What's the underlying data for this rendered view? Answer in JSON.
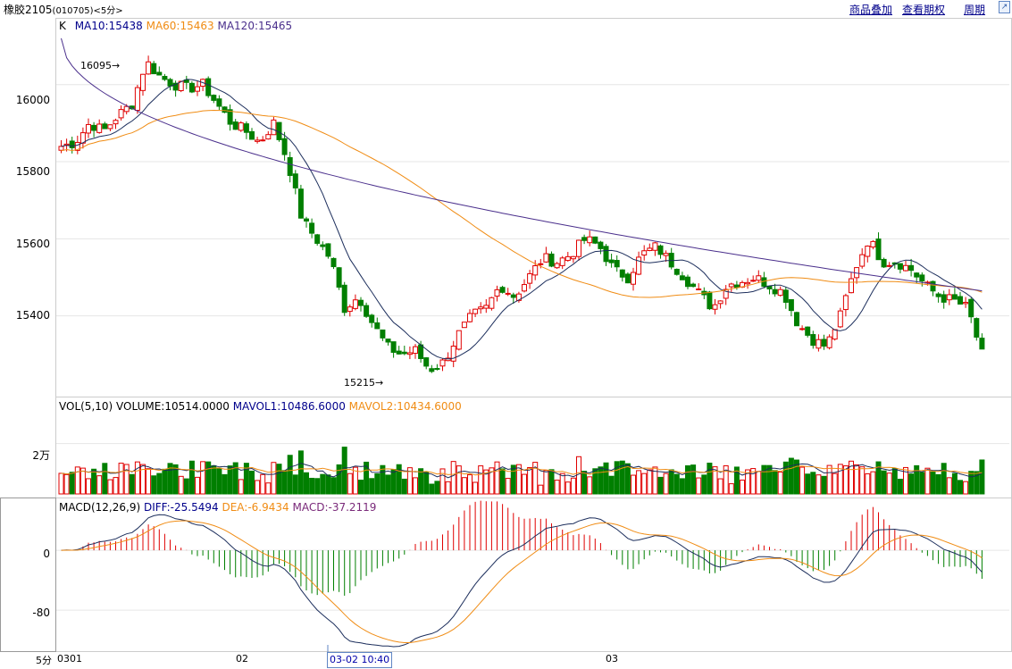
{
  "header": {
    "instrument": "橡胶2105",
    "code": "(010705)",
    "period": "<5分>",
    "menu_overlay": "商品叠加",
    "menu_options": "查看期权",
    "menu_period": "周期"
  },
  "price_panel": {
    "legend_k": "K",
    "legend_ma10": "MA10:15438",
    "legend_ma60": "MA60:15463",
    "legend_ma120": "MA120:15465",
    "high_label": "16095",
    "low_label": "15215",
    "ticks": [
      "16000",
      "15800",
      "15600",
      "15400"
    ]
  },
  "volume_panel": {
    "legend_name": "VOL(5,10)",
    "legend_volume": "VOLUME:10514.0000",
    "legend_mavol1": "MAVOL1:10486.6000",
    "legend_mavol2": "MAVOL2:10434.6000",
    "tick": "2万"
  },
  "macd_panel": {
    "legend_name": "MACD(12,26,9)",
    "legend_diff": "DIFF:-25.5494",
    "legend_dea": "DEA:-6.9434",
    "legend_macd": "MACD:-37.2119",
    "ticks": [
      "0",
      "-80"
    ]
  },
  "x_axis": {
    "period_label": "5分",
    "labels": [
      "0301",
      "02",
      "03"
    ],
    "cursor_label": "03-02 10:40"
  },
  "colors": {
    "up": "#e00000",
    "down": "#007f00",
    "ma10": "#1c2e5c",
    "ma60": "#f08c14",
    "ma120": "#4a2f8c",
    "diff": "#1c2e5c",
    "dea": "#f08c14",
    "menu_link": "#00008b"
  },
  "chart_data": [
    {
      "type": "candlestick",
      "title": "",
      "ylim": [
        15200,
        16150
      ],
      "anchors": [
        15840,
        15850,
        15900,
        15880,
        15920,
        15950,
        16060,
        16020,
        16000,
        15990,
        16000,
        15950,
        15900,
        15880,
        15850,
        15900,
        15800,
        15650,
        15600,
        15550,
        15420,
        15450,
        15380,
        15320,
        15300,
        15310,
        15260,
        15280,
        15350,
        15400,
        15420,
        15480,
        15450,
        15500,
        15550,
        15540,
        15560,
        15600,
        15580,
        15520,
        15500,
        15560,
        15580,
        15540,
        15500,
        15460,
        15420,
        15480,
        15490,
        15500,
        15480,
        15460,
        15380,
        15340,
        15320,
        15400,
        15520,
        15600,
        15540,
        15540,
        15520,
        15480,
        15450,
        15440,
        15420,
        15300
      ],
      "anchor_points": [
        0,
        3,
        6,
        9,
        12,
        15,
        18,
        21,
        24,
        27,
        30,
        33,
        36,
        39,
        42,
        45,
        48,
        51,
        54,
        57,
        60,
        63,
        66,
        69,
        72,
        75,
        78,
        81,
        84,
        87,
        90,
        93,
        96,
        99,
        102,
        105,
        108,
        111,
        114,
        117,
        120,
        123,
        126,
        129,
        132,
        135,
        138,
        141,
        144,
        147,
        150,
        153,
        156,
        159,
        162,
        165,
        168,
        171,
        174,
        177,
        180,
        183,
        186,
        189,
        192,
        195
      ],
      "last": {
        "ma10": 15438,
        "ma60": 15463,
        "ma120": 15465
      },
      "high": 16095,
      "low": 15215,
      "n_bars": 170
    },
    {
      "type": "bar",
      "title": "",
      "series": [
        {
          "name": "VOLUME",
          "last": 10514.0
        },
        {
          "name": "MAVOL1",
          "last": 10486.6
        },
        {
          "name": "MAVOL2",
          "last": 10434.6
        }
      ],
      "ylim": [
        0,
        33000
      ]
    },
    {
      "type": "bar",
      "title": "",
      "series": [
        {
          "name": "DIFF",
          "last": -25.5494
        },
        {
          "name": "DEA",
          "last": -6.9434
        },
        {
          "name": "MACD",
          "last": -37.2119
        }
      ],
      "ylim": [
        -130,
        55
      ]
    }
  ]
}
